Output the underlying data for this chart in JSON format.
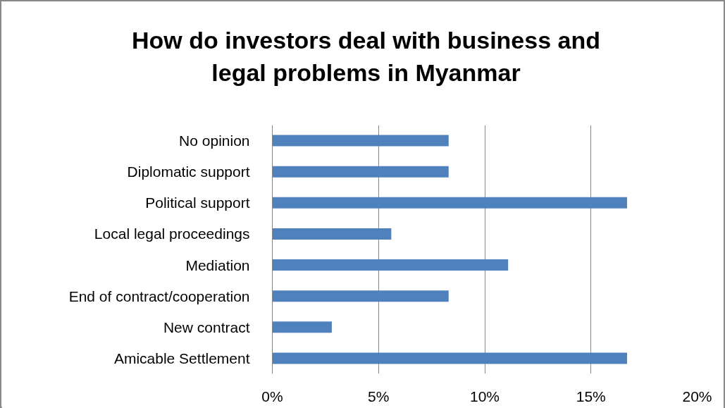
{
  "chart_data": {
    "type": "bar",
    "orientation": "horizontal",
    "title": "How do investors deal with business and legal problems in Myanmar",
    "categories": [
      "No opinion",
      "Diplomatic support",
      "Political support",
      "Local legal proceedings",
      "Mediation",
      "End of contract/cooperation",
      "New contract",
      "Amicable Settlement"
    ],
    "values": [
      8.3,
      8.3,
      16.7,
      5.6,
      11.1,
      8.3,
      2.8,
      16.7
    ],
    "color": "#4f81bd",
    "xlim": [
      0,
      20
    ],
    "xticks": [
      {
        "value": 0,
        "label": "0%"
      },
      {
        "value": 5,
        "label": "5%"
      },
      {
        "value": 10,
        "label": "10%"
      },
      {
        "value": 15,
        "label": "15%"
      },
      {
        "value": 20,
        "label": "20%"
      }
    ],
    "grid": "x"
  }
}
